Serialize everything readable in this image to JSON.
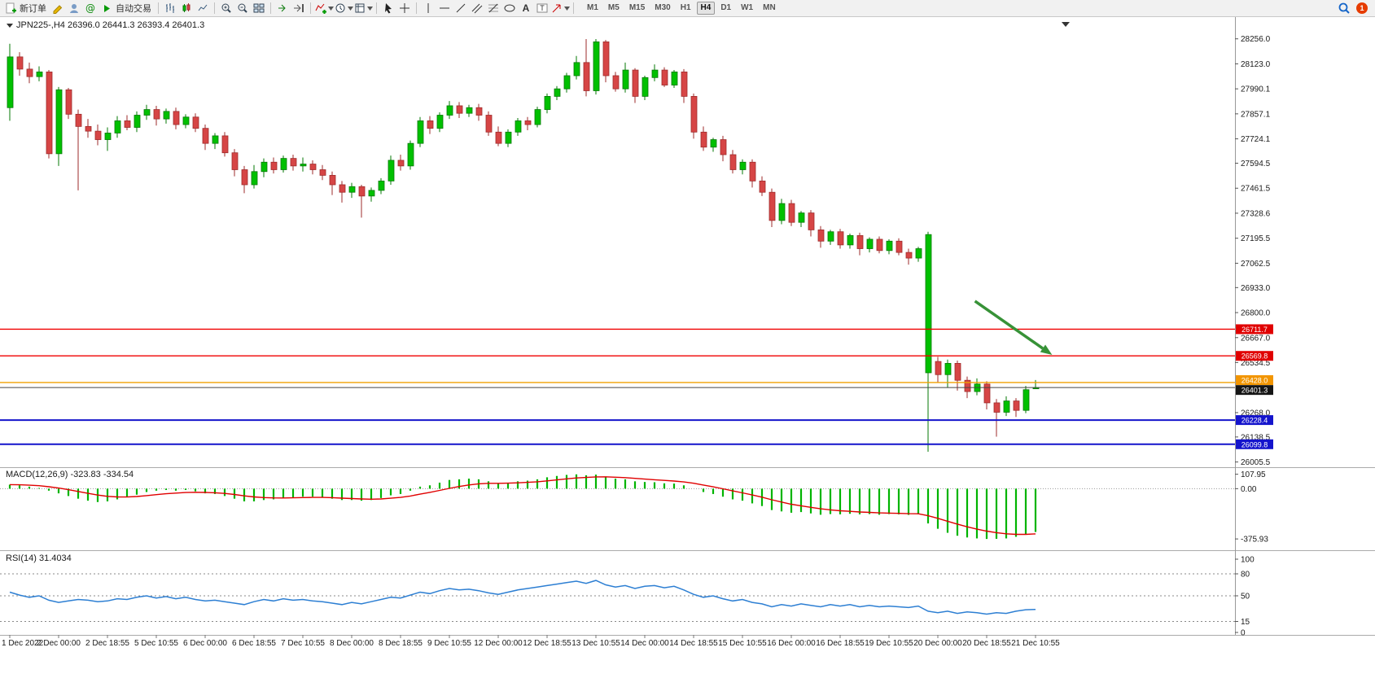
{
  "colors": {
    "bull": "#00C000",
    "bull_border": "#067806",
    "bear": "#D64545",
    "bear_border": "#9E2B2B",
    "macd_hist": "#00B400",
    "macd_signal": "#E00000",
    "rsi_line": "#2D7FD3",
    "hline_red": "#F00000",
    "hline_orange": "#F0A000",
    "hline_blue": "#1414CC",
    "label_red_bg": "#E00000",
    "label_orange_bg": "#F29500",
    "label_blue_bg": "#1414CC",
    "label_black_bg": "#151515",
    "price_line": "#444444",
    "arrow_green": "#379237",
    "axis_text": "#1a1a1a",
    "separator": "#aaaaaa"
  },
  "toolbar": {
    "new_order_label": "新订单",
    "autotrade_label": "自动交易",
    "timeframes": [
      "M1",
      "M5",
      "M15",
      "M30",
      "H1",
      "H4",
      "D1",
      "W1",
      "MN"
    ],
    "active_timeframe": "H4",
    "notification_count": "1"
  },
  "chart": {
    "symbol_ohlc_label": "JPN225-,H4 26396.0 26441.3 26393.4 26401.3",
    "indicator_macd_label": "MACD(12,26,9) -323.83 -334.54",
    "indicator_rsi_label": "RSI(14) 31.4034"
  },
  "chart_data": {
    "type": "candlestick",
    "symbol": "JPN225-",
    "timeframe": "H4",
    "ohlc_display": {
      "open": "26396.0",
      "high": "26441.3",
      "low": "26393.4",
      "close": "26401.3"
    },
    "price_axis": {
      "ticks": [
        "28256.0",
        "28123.0",
        "27990.1",
        "27857.1",
        "27724.1",
        "27594.5",
        "27461.5",
        "27328.6",
        "27195.5",
        "27062.5",
        "26933.0",
        "26800.0",
        "26667.0",
        "26534.5",
        "26268.0",
        "26138.5",
        "26005.5"
      ]
    },
    "x_labels": [
      [
        0,
        "1 Dec 2022"
      ],
      [
        5,
        "2 Dec 00:00"
      ],
      [
        10,
        "2 Dec 18:55"
      ],
      [
        15,
        "5 Dec 10:55"
      ],
      [
        20,
        "6 Dec 00:00"
      ],
      [
        25,
        "6 Dec 18:55"
      ],
      [
        30,
        "7 Dec 10:55"
      ],
      [
        35,
        "8 Dec 00:00"
      ],
      [
        40,
        "8 Dec 18:55"
      ],
      [
        45,
        "9 Dec 10:55"
      ],
      [
        50,
        "12 Dec 00:00"
      ],
      [
        55,
        "12 Dec 18:55"
      ],
      [
        60,
        "13 Dec 10:55"
      ],
      [
        65,
        "14 Dec 00:00"
      ],
      [
        70,
        "14 Dec 18:55"
      ],
      [
        75,
        "15 Dec 10:55"
      ],
      [
        80,
        "16 Dec 00:00"
      ],
      [
        85,
        "16 Dec 18:55"
      ],
      [
        90,
        "19 Dec 10:55"
      ],
      [
        95,
        "20 Dec 00:00"
      ],
      [
        100,
        "20 Dec 18:55"
      ],
      [
        105,
        "21 Dec 10:55"
      ]
    ],
    "candles": [
      [
        27890,
        28230,
        27820,
        28160
      ],
      [
        28160,
        28185,
        28060,
        28095
      ],
      [
        28095,
        28130,
        28020,
        28055
      ],
      [
        28055,
        28110,
        28030,
        28080
      ],
      [
        28080,
        28090,
        27620,
        27645
      ],
      [
        27645,
        28000,
        27580,
        27985
      ],
      [
        27985,
        27995,
        27830,
        27855
      ],
      [
        27855,
        27880,
        27450,
        27790
      ],
      [
        27790,
        27830,
        27730,
        27765
      ],
      [
        27765,
        27800,
        27690,
        27720
      ],
      [
        27720,
        27785,
        27660,
        27755
      ],
      [
        27755,
        27845,
        27730,
        27820
      ],
      [
        27820,
        27850,
        27770,
        27785
      ],
      [
        27785,
        27870,
        27760,
        27850
      ],
      [
        27850,
        27905,
        27825,
        27880
      ],
      [
        27880,
        27900,
        27795,
        27830
      ],
      [
        27830,
        27885,
        27805,
        27870
      ],
      [
        27870,
        27890,
        27775,
        27800
      ],
      [
        27800,
        27855,
        27780,
        27840
      ],
      [
        27840,
        27860,
        27760,
        27780
      ],
      [
        27780,
        27800,
        27665,
        27700
      ],
      [
        27700,
        27755,
        27670,
        27740
      ],
      [
        27740,
        27760,
        27630,
        27650
      ],
      [
        27650,
        27670,
        27525,
        27560
      ],
      [
        27560,
        27580,
        27435,
        27480
      ],
      [
        27480,
        27585,
        27460,
        27550
      ],
      [
        27550,
        27620,
        27520,
        27600
      ],
      [
        27600,
        27625,
        27540,
        27560
      ],
      [
        27560,
        27635,
        27545,
        27620
      ],
      [
        27620,
        27640,
        27555,
        27580
      ],
      [
        27580,
        27625,
        27550,
        27590
      ],
      [
        27590,
        27610,
        27535,
        27560
      ],
      [
        27560,
        27585,
        27505,
        27530
      ],
      [
        27530,
        27550,
        27425,
        27480
      ],
      [
        27480,
        27500,
        27385,
        27440
      ],
      [
        27440,
        27490,
        27410,
        27470
      ],
      [
        27470,
        27480,
        27305,
        27420
      ],
      [
        27420,
        27465,
        27390,
        27450
      ],
      [
        27450,
        27515,
        27430,
        27500
      ],
      [
        27500,
        27635,
        27480,
        27610
      ],
      [
        27610,
        27640,
        27555,
        27580
      ],
      [
        27580,
        27715,
        27560,
        27700
      ],
      [
        27700,
        27840,
        27680,
        27820
      ],
      [
        27820,
        27845,
        27750,
        27780
      ],
      [
        27780,
        27865,
        27760,
        27850
      ],
      [
        27850,
        27925,
        27830,
        27900
      ],
      [
        27900,
        27920,
        27835,
        27860
      ],
      [
        27860,
        27905,
        27840,
        27890
      ],
      [
        27890,
        27910,
        27820,
        27850
      ],
      [
        27850,
        27870,
        27740,
        27760
      ],
      [
        27760,
        27790,
        27685,
        27700
      ],
      [
        27700,
        27775,
        27680,
        27760
      ],
      [
        27760,
        27835,
        27740,
        27820
      ],
      [
        27820,
        27840,
        27770,
        27800
      ],
      [
        27800,
        27895,
        27785,
        27880
      ],
      [
        27880,
        27965,
        27860,
        27950
      ],
      [
        27950,
        28005,
        27930,
        27990
      ],
      [
        27990,
        28075,
        27970,
        28060
      ],
      [
        28060,
        28165,
        28040,
        28130
      ],
      [
        28130,
        28255,
        27950,
        27980
      ],
      [
        27980,
        28255,
        27960,
        28240
      ],
      [
        28240,
        28250,
        28025,
        28060
      ],
      [
        28060,
        28080,
        27975,
        27990
      ],
      [
        27990,
        28130,
        27970,
        28090
      ],
      [
        28090,
        28100,
        27915,
        27950
      ],
      [
        27950,
        28060,
        27930,
        28050
      ],
      [
        28050,
        28120,
        28030,
        28090
      ],
      [
        28090,
        28105,
        28000,
        28010
      ],
      [
        28010,
        28090,
        27995,
        28080
      ],
      [
        28080,
        28095,
        27915,
        27950
      ],
      [
        27950,
        27965,
        27725,
        27760
      ],
      [
        27760,
        27790,
        27660,
        27680
      ],
      [
        27680,
        27730,
        27655,
        27720
      ],
      [
        27720,
        27740,
        27605,
        27640
      ],
      [
        27640,
        27665,
        27540,
        27560
      ],
      [
        27560,
        27615,
        27535,
        27600
      ],
      [
        27600,
        27615,
        27465,
        27500
      ],
      [
        27500,
        27525,
        27420,
        27440
      ],
      [
        27440,
        27460,
        27255,
        27290
      ],
      [
        27290,
        27405,
        27270,
        27380
      ],
      [
        27380,
        27400,
        27260,
        27280
      ],
      [
        27280,
        27340,
        27255,
        27330
      ],
      [
        27330,
        27345,
        27205,
        27240
      ],
      [
        27240,
        27260,
        27145,
        27180
      ],
      [
        27180,
        27240,
        27160,
        27230
      ],
      [
        27230,
        27245,
        27140,
        27160
      ],
      [
        27160,
        27220,
        27140,
        27210
      ],
      [
        27210,
        27225,
        27105,
        27140
      ],
      [
        27140,
        27200,
        27120,
        27190
      ],
      [
        27190,
        27205,
        27115,
        27130
      ],
      [
        27130,
        27190,
        27110,
        27180
      ],
      [
        27180,
        27195,
        27105,
        27120
      ],
      [
        27120,
        27140,
        27055,
        27090
      ],
      [
        27090,
        27150,
        27070,
        27140
      ],
      [
        26480,
        27230,
        26060,
        27215
      ],
      [
        26540,
        26565,
        26430,
        26470
      ],
      [
        26470,
        26550,
        26400,
        26530
      ],
      [
        26530,
        26545,
        26385,
        26440
      ],
      [
        26440,
        26460,
        26345,
        26380
      ],
      [
        26380,
        26450,
        26360,
        26420
      ],
      [
        26420,
        26435,
        26285,
        26320
      ],
      [
        26320,
        26340,
        26140,
        26270
      ],
      [
        26270,
        26355,
        26250,
        26330
      ],
      [
        26330,
        26345,
        26245,
        26280
      ],
      [
        26280,
        26410,
        26265,
        26390
      ],
      [
        26396.0,
        26441.3,
        26393.4,
        26401.3
      ]
    ],
    "hlines": [
      {
        "price": 26711.7,
        "label": "26711.7",
        "color": "red"
      },
      {
        "price": 26569.8,
        "label": "26569.8",
        "color": "red"
      },
      {
        "price": 26428.0,
        "label": "26428.0",
        "color": "orange",
        "nudge": -3
      },
      {
        "price": 26228.4,
        "label": "26228.4",
        "color": "blue"
      },
      {
        "price": 26099.8,
        "label": "26099.8",
        "color": "blue"
      }
    ],
    "current_price": {
      "price": 26401.3,
      "label": "26401.3",
      "nudge": 3
    },
    "annotation_arrow": {
      "from": {
        "index": 98.8,
        "price": 26861
      },
      "to": {
        "index": 106.7,
        "price": 26575
      }
    },
    "macd": {
      "name": "MACD(12,26,9)",
      "display_values": "-323.83 -334.54",
      "scale_ticks": [
        {
          "v": 107.95,
          "t": "107.95"
        },
        {
          "v": 0,
          "t": "0.00"
        },
        {
          "v": -375.93,
          "t": "-375.93"
        }
      ],
      "values": [
        30,
        25,
        15,
        5,
        -15,
        -35,
        -55,
        -75,
        -90,
        -100,
        -95,
        -80,
        -65,
        -45,
        -25,
        -15,
        -10,
        -15,
        -10,
        -20,
        -35,
        -40,
        -55,
        -75,
        -95,
        -95,
        -85,
        -80,
        -70,
        -65,
        -60,
        -60,
        -65,
        -75,
        -85,
        -85,
        -90,
        -85,
        -70,
        -50,
        -40,
        -15,
        15,
        25,
        45,
        65,
        70,
        75,
        70,
        55,
        40,
        45,
        55,
        60,
        70,
        85,
        95,
        103,
        107,
        100,
        105,
        90,
        75,
        70,
        55,
        50,
        48,
        40,
        38,
        25,
        0,
        -25,
        -40,
        -60,
        -80,
        -90,
        -110,
        -130,
        -160,
        -170,
        -180,
        -175,
        -185,
        -195,
        -190,
        -192,
        -188,
        -192,
        -190,
        -195,
        -190,
        -192,
        -196,
        -192,
        -260,
        -300,
        -330,
        -352,
        -365,
        -372,
        -376,
        -375,
        -372,
        -360,
        -342,
        -323.83
      ]
    },
    "rsi": {
      "name": "RSI(14)",
      "display_value": "31.4034",
      "levels": [
        {
          "v": 100,
          "t": "100"
        },
        {
          "v": 80,
          "t": "80"
        },
        {
          "v": 50,
          "t": "50"
        },
        {
          "v": 15,
          "t": "15"
        },
        {
          "v": 0,
          "t": "0"
        }
      ],
      "values": [
        55,
        51,
        48,
        50,
        44,
        41,
        43,
        45,
        44,
        42,
        43,
        46,
        45,
        48,
        50,
        47,
        49,
        46,
        48,
        45,
        43,
        44,
        42,
        40,
        38,
        42,
        45,
        43,
        46,
        44,
        45,
        43,
        42,
        40,
        38,
        41,
        39,
        42,
        45,
        48,
        47,
        51,
        55,
        53,
        57,
        60,
        58,
        59,
        57,
        54,
        52,
        55,
        58,
        60,
        62,
        64,
        66,
        68,
        70,
        67,
        71,
        65,
        62,
        64,
        60,
        63,
        64,
        61,
        63,
        58,
        52,
        48,
        50,
        46,
        43,
        45,
        41,
        39,
        35,
        38,
        36,
        39,
        37,
        35,
        38,
        36,
        38,
        35,
        37,
        35,
        36,
        35,
        34,
        36,
        29,
        27,
        29,
        26,
        28,
        27,
        25,
        27,
        26,
        29,
        31,
        31.4
      ]
    }
  }
}
